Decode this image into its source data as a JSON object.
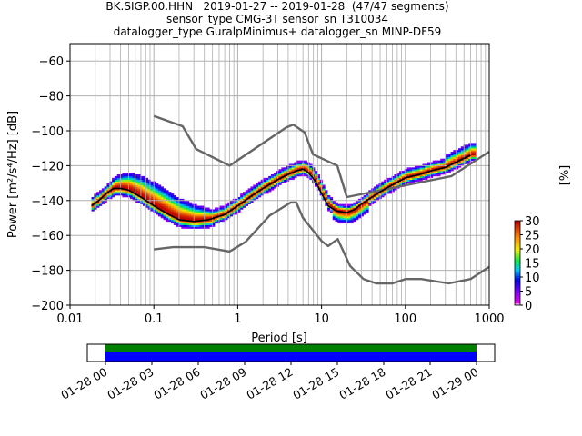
{
  "title_lines": [
    "BK.SIGP.00.HHN   2019-01-27 -- 2019-01-28  (47/47 segments)",
    "sensor_type CMG-3T sensor_sn T310034",
    "datalogger_type GuralpMinimus+ datalogger_sn MINP-DF59"
  ],
  "chart_data": {
    "type": "heatmap",
    "xlabel": "Period [s]",
    "ylabel": "Power [m²/s⁴/Hz] [dB]",
    "xscale": "log",
    "xlim": [
      0.01,
      1000
    ],
    "ylim": [
      -200,
      -50
    ],
    "x_ticks": [
      0.01,
      0.1,
      1,
      10,
      100,
      1000
    ],
    "x_tick_labels": [
      "0.01",
      "0.1",
      "1",
      "10",
      "100",
      "1000"
    ],
    "y_ticks": [
      -200,
      -180,
      -160,
      -140,
      -120,
      -100,
      -80,
      -60
    ],
    "y_tick_labels": [
      "−200",
      "−180",
      "−160",
      "−140",
      "−120",
      "−100",
      "−80",
      "−60"
    ],
    "grid": true,
    "colorbar": {
      "label": "[%]",
      "min": 0,
      "max": 30,
      "ticks": [
        0,
        5,
        10,
        15,
        20,
        25,
        30
      ],
      "tick_labels": [
        "0",
        "5",
        "10",
        "15",
        "20",
        "25",
        "30"
      ]
    },
    "series": [
      {
        "role": "noise-model-high",
        "periods": [
          0.1,
          0.22,
          0.32,
          0.8,
          3.8,
          4.6,
          6.3,
          7.9,
          15.4,
          20,
          354.8,
          1000
        ],
        "values": [
          -91.5,
          -97.4,
          -110.5,
          -120,
          -98,
          -96.5,
          -101,
          -113.5,
          -120,
          -138,
          -126,
          -112
        ]
      },
      {
        "role": "noise-model-low",
        "periods": [
          0.1,
          0.17,
          0.4,
          0.8,
          1.24,
          2.4,
          4.3,
          5.0,
          6.0,
          10.0,
          12.0,
          15.6,
          21.9,
          31.6,
          45.0,
          70.0,
          101.0,
          154.0,
          328.0,
          600.0,
          1000.0
        ],
        "values": [
          -168,
          -166.7,
          -166.7,
          -169.2,
          -163.7,
          -148.6,
          -141.1,
          -141.1,
          -149.9,
          -163.2,
          -166.1,
          -162.1,
          -177.5,
          -185,
          -187.5,
          -187.5,
          -185,
          -185,
          -187.5,
          -185,
          -178
        ]
      },
      {
        "role": "mode",
        "periods": [
          0.018,
          0.022,
          0.027,
          0.033,
          0.04,
          0.05,
          0.07,
          0.1,
          0.15,
          0.2,
          0.3,
          0.45,
          0.7,
          1.0,
          1.5,
          2.0,
          3.0,
          4.0,
          5.0,
          6.0,
          7.0,
          8.5,
          10.0,
          12.0,
          15.0,
          20.0,
          25.0,
          30.0,
          40.0,
          50.0,
          70.0,
          100.0,
          150.0,
          200.0,
          300.0,
          400.0,
          600.0
        ],
        "values": [
          -143,
          -140,
          -136,
          -133,
          -133,
          -134,
          -138,
          -143,
          -148,
          -151,
          -152,
          -151,
          -148,
          -143,
          -137,
          -133,
          -128,
          -125,
          -123,
          -122,
          -124,
          -129,
          -136,
          -143,
          -146,
          -147,
          -145,
          -142,
          -138,
          -135,
          -131,
          -127,
          -125,
          -123,
          -121,
          -118,
          -114
        ]
      }
    ]
  },
  "timeline": {
    "tick_labels": [
      "01-28 00",
      "01-28 03",
      "01-28 06",
      "01-28 09",
      "01-28 12",
      "01-28 15",
      "01-28 18",
      "01-28 21",
      "01-29 00"
    ],
    "coverage_colors": [
      "#008000",
      "#0000ff"
    ],
    "coverage_start": "01-28 00",
    "coverage_end": "01-29 00"
  }
}
